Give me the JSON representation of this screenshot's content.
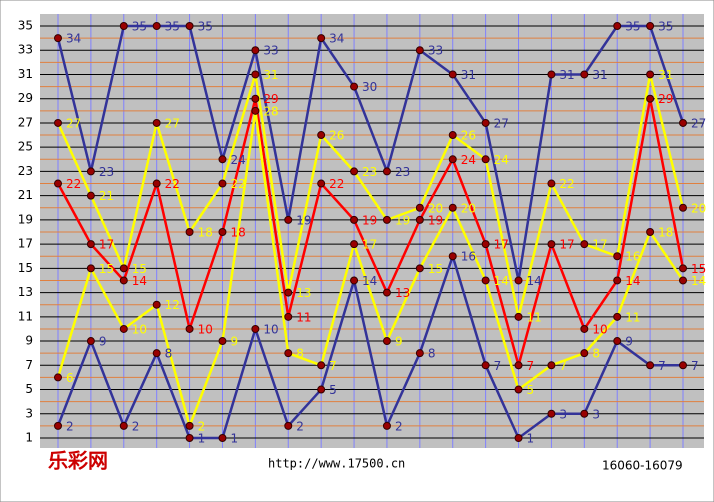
{
  "chart_data": {
    "type": "line",
    "categories": [
      null,
      null,
      null,
      null,
      null,
      null,
      null,
      null,
      null,
      null,
      null,
      null,
      null,
      null,
      null,
      null,
      null,
      null,
      null,
      null
    ],
    "series": [
      {
        "color": "#333399",
        "values": [
          34,
          23,
          35,
          35,
          35,
          24,
          33,
          19,
          34,
          30,
          23,
          33,
          31,
          27,
          14,
          31,
          31,
          35,
          35,
          27
        ]
      },
      {
        "color": "#ffff00",
        "values": [
          27,
          21,
          15,
          27,
          18,
          22,
          31,
          13,
          26,
          23,
          19,
          20,
          26,
          24,
          11,
          22,
          17,
          16,
          31,
          20
        ]
      },
      {
        "color": "#ff0000",
        "values": [
          22,
          17,
          14,
          22,
          10,
          18,
          29,
          11,
          22,
          19,
          13,
          19,
          24,
          17,
          7,
          17,
          10,
          14,
          29,
          15
        ]
      },
      {
        "color": "#ffff00",
        "values": [
          6,
          15,
          10,
          12,
          2,
          9,
          28,
          8,
          7,
          17,
          9,
          15,
          20,
          14,
          5,
          7,
          8,
          11,
          18,
          14
        ]
      },
      {
        "color": "#333399",
        "values": [
          2,
          9,
          2,
          8,
          1,
          1,
          10,
          2,
          5,
          14,
          2,
          8,
          16,
          7,
          1,
          3,
          3,
          9,
          7,
          7
        ]
      }
    ],
    "ylim": [
      1,
      35
    ],
    "yticks": [
      1,
      3,
      5,
      7,
      9,
      11,
      13,
      15,
      17,
      19,
      21,
      23,
      25,
      27,
      29,
      31,
      33,
      35
    ],
    "grid": true,
    "logo": "乐彩网",
    "url": "http://www.17500.cn",
    "range": "16060-16079"
  }
}
